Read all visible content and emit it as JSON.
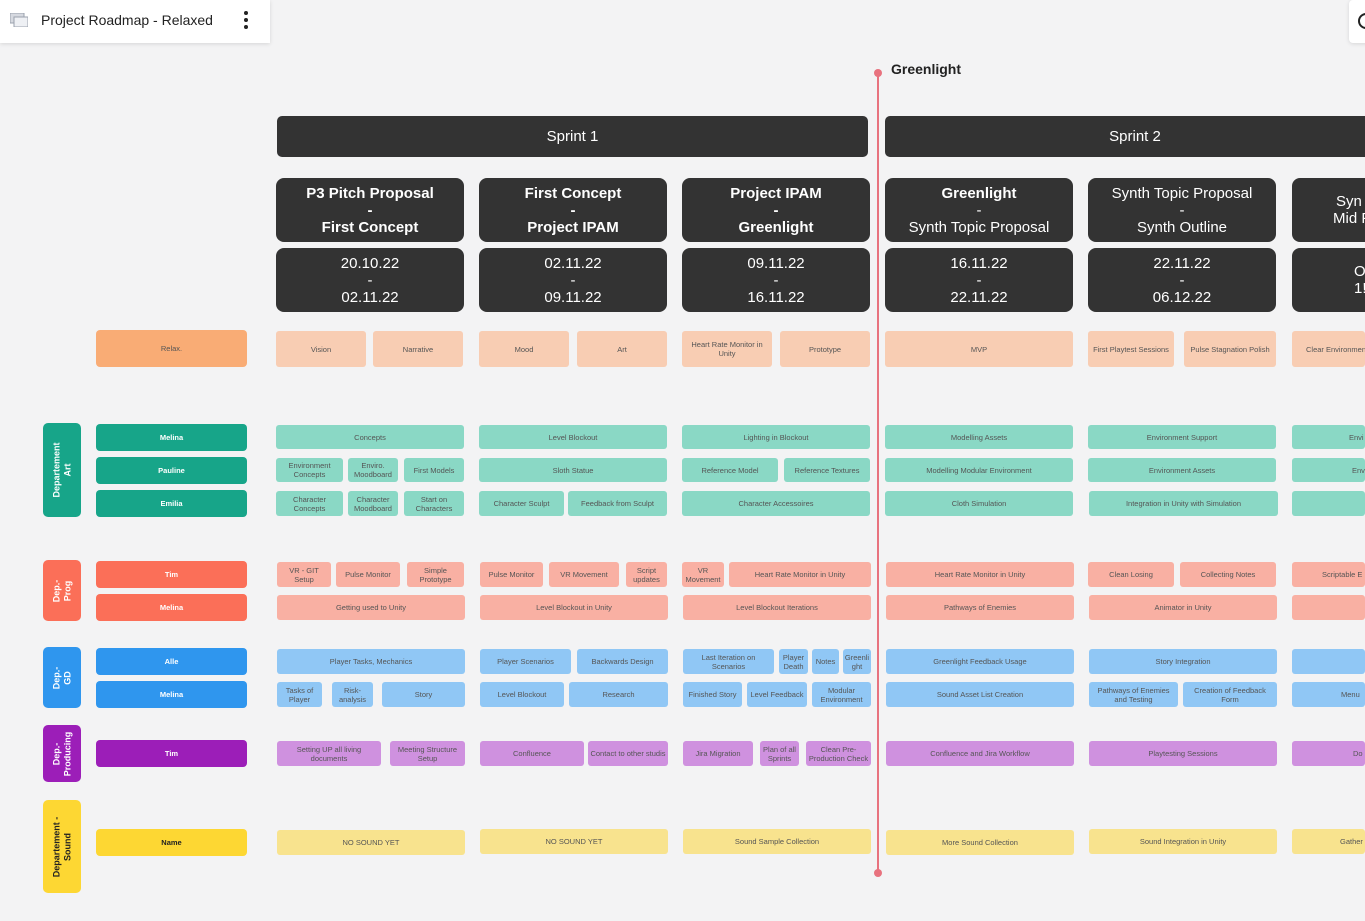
{
  "board": {
    "title": "Project Roadmap - Relaxed",
    "menu_icon": "more-vertical-icon",
    "corner_icon": "search-icon"
  },
  "milestone": {
    "label": "Greenlight",
    "color": "#e8727e"
  },
  "colors": {
    "phase": "#333333",
    "relax_label": "#f9ac75",
    "relax_task": "#f8cdb3",
    "art_label": "#17a589",
    "art_task": "#8ad8c5",
    "prog_label": "#fb6f58",
    "prog_task": "#f9b0a3",
    "gd_label": "#2f96ee",
    "gd_task": "#90c7f5",
    "producing_label": "#9c1eb8",
    "producing_task": "#cf91df",
    "sound_label": "#fdd733",
    "sound_task": "#f8e38e"
  },
  "sprints": [
    "Sprint 1",
    "Sprint 2"
  ],
  "phases": [
    {
      "title": "P3 Pitch Proposal",
      "sep": "-",
      "title2": "First Concept",
      "start": "20.10.22",
      "dash": "-",
      "end": "02.11.22"
    },
    {
      "title": "First Concept",
      "sep": "-",
      "title2": "Project IPAM",
      "start": "02.11.22",
      "dash": "-",
      "end": "09.11.22"
    },
    {
      "title": "Project IPAM",
      "sep": "-",
      "title2": "Greenlight",
      "start": "09.11.22",
      "dash": "-",
      "end": "16.11.22"
    },
    {
      "title": "Greenlight",
      "sep": "-",
      "title2": "Synth Topic Proposal",
      "start": "16.11.22",
      "dash": "-",
      "end": "22.11.22"
    },
    {
      "title": "Synth Topic Proposal",
      "sep": "-",
      "title2": "Synth Outline",
      "start": "22.11.22",
      "dash": "-",
      "end": "06.12.22"
    },
    {
      "title": "Syn",
      "sep": "",
      "title2": "Mid F",
      "start": "O",
      "dash": "",
      "end": "1!"
    }
  ],
  "departments": [
    {
      "label": "Departement\nArt"
    },
    {
      "label": "Dep.-\nProg"
    },
    {
      "label": "Dep.-\nGD"
    },
    {
      "label": "Dep.-\nProducing"
    },
    {
      "label": "Departement -\nSound"
    }
  ],
  "people": [
    "Relax.",
    "Melina",
    "Pauline",
    "Emilia",
    "Tim",
    "Melina",
    "Alle",
    "Melina",
    "Tim",
    "Name"
  ],
  "tasks": {
    "relax": [
      "Vision",
      "Narrative",
      "Mood",
      "Art",
      "Heart Rate Monitor in Unity",
      "Prototype",
      "MVP",
      "First Playtest Sessions",
      "Pulse Stagnation Polish",
      "Clear Environment"
    ],
    "art": [
      "Concepts",
      "Level Blockout",
      "Lighting in Blockout",
      "Modelling Assets",
      "Environment Support",
      "Envi",
      "Environment Concepts",
      "Enviro. Moodboard",
      "First Models",
      "Sloth Statue",
      "Reference Model",
      "Reference Textures",
      "Modelling Modular Environment",
      "Environment Assets",
      "Env",
      "Character Concepts",
      "Character Moodboard",
      "Start on Characters",
      "Character Sculpt",
      "Feedback from Sculpt",
      "Character Accessoires",
      "Cloth Simulation",
      "Integration in Unity with Simulation",
      ""
    ],
    "prog": [
      "VR - GIT Setup",
      "Pulse Monitor",
      "Simple Prototype",
      "Pulse Monitor",
      "VR Movement",
      "Script updates",
      "VR Movement",
      "Heart Rate Monitor in Unity",
      "Heart Rate Monitor in Unity",
      "Clean Losing",
      "Collecting Notes",
      "Scriptable E",
      "Getting used to Unity",
      "Level Blockout in Unity",
      "Level Blockout Iterations",
      "Pathways of Enemies",
      "Animator in Unity",
      ""
    ],
    "gd": [
      "Player Tasks, Mechanics",
      "Player Scenarios",
      "Backwards Design",
      "Last Iteration on Scenarios",
      "Player Death",
      "Notes",
      "Greenli ght",
      "Greenlight Feedback Usage",
      "Story Integration",
      "",
      "Tasks of Player",
      "Risk-analysis",
      "Story",
      "Level Blockout",
      "Research",
      "Finished Story",
      "Level Feedback",
      "Modular Environment",
      "Sound Asset List Creation",
      "Pathways of Enemies and Testing",
      "Creation of Feedback Form",
      "Menu"
    ],
    "producing": [
      "Setting UP all living documents",
      "Meeting Structure Setup",
      "Confluence",
      "Contact to other studis",
      "Jira Migration",
      "Plan of all Sprints",
      "Clean Pre-Production Check",
      "Confluence and Jira Workflow",
      "Playtesting Sessions",
      "Do"
    ],
    "sound": [
      "NO SOUND YET",
      "NO SOUND YET",
      "Sound Sample Collection",
      "More Sound Collection",
      "Sound Integration in Unity",
      "Gather"
    ]
  }
}
